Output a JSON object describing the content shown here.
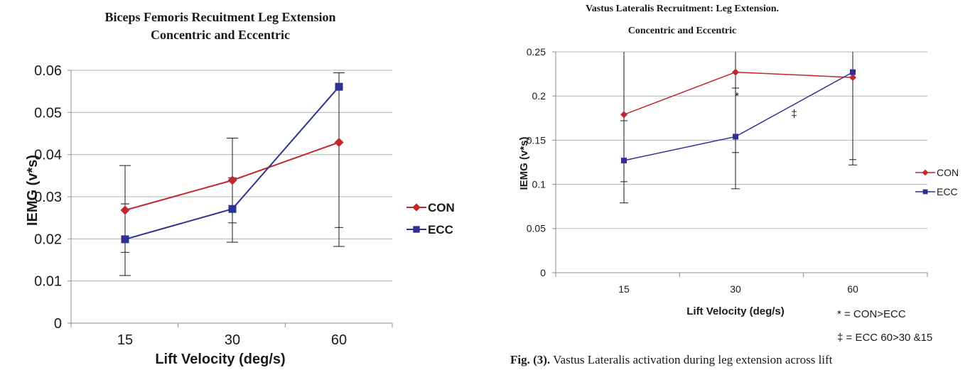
{
  "chart_data": [
    {
      "type": "line",
      "title_lines": [
        "Biceps Femoris Recuitment Leg Extension",
        "Concentric and Eccentric"
      ],
      "xlabel": "Lift Velocity (deg/s)",
      "ylabel": "IEMG (v*s)",
      "categories": [
        "15",
        "30",
        "60"
      ],
      "ylim": [
        0,
        0.06
      ],
      "yticks": [
        0,
        0.01,
        0.02,
        0.03,
        0.04,
        0.05,
        0.06
      ],
      "ytick_labels": [
        "0",
        "0.01",
        "0.02",
        "0.03",
        "0.04",
        "0.05",
        "0.06"
      ],
      "grid": true,
      "legend_position": "right",
      "series": [
        {
          "name": "CON",
          "color": "#c0282e",
          "marker": "diamond",
          "values": [
            0.0268,
            0.0339,
            0.0429
          ],
          "err_low": [
            0.0268,
            0.0339,
            0.0429
          ],
          "err_high": [
            0.0268,
            0.0339,
            0.0429
          ]
        },
        {
          "name": "ECC",
          "color": "#2e3192",
          "marker": "square",
          "values": [
            0.0199,
            0.0271,
            0.0561
          ],
          "err_low": [
            0.0113,
            0.0192,
            0.0182
          ],
          "err_high": [
            0.0374,
            0.0439,
            0.0594
          ]
        }
      ],
      "error_bars": [
        {
          "x": "15",
          "low": 0.0113,
          "high": 0.0374,
          "extra_caps": [
            0.0168,
            0.0283
          ]
        },
        {
          "x": "30",
          "low": 0.0192,
          "high": 0.0439,
          "extra_caps": [
            0.0238,
            0.0345
          ]
        },
        {
          "x": "60",
          "low": 0.0182,
          "high": 0.0594,
          "extra_caps": [
            0.0227
          ]
        }
      ],
      "annotations": []
    },
    {
      "type": "line",
      "title_lines": [
        "Vastus Lateralis Recruitment: Leg Extension.",
        "Concentric and Eccentric"
      ],
      "xlabel": "Lift Velocity (deg/s)",
      "ylabel": "IEMG (v*s)",
      "categories": [
        "15",
        "30",
        "60"
      ],
      "ylim": [
        0,
        0.25
      ],
      "yticks": [
        0,
        0.05,
        0.1,
        0.15,
        0.2,
        0.25
      ],
      "ytick_labels": [
        "0",
        "0.05",
        "0.1",
        "0.15",
        "0.2",
        "0.25"
      ],
      "grid": true,
      "legend_position": "right",
      "series": [
        {
          "name": "CON",
          "color": "#c0282e",
          "marker": "diamond",
          "values": [
            0.179,
            0.227,
            0.221
          ]
        },
        {
          "name": "ECC",
          "color": "#2e3192",
          "marker": "square",
          "values": [
            0.127,
            0.154,
            0.227
          ]
        }
      ],
      "error_bars": [
        {
          "x": "15",
          "low": 0.079,
          "high": 0.25,
          "extra_caps": [
            0.103,
            0.172
          ]
        },
        {
          "x": "30",
          "low": 0.095,
          "high": 0.25,
          "extra_caps": [
            0.136,
            0.209
          ]
        },
        {
          "x": "60",
          "low": 0.122,
          "high": 0.25,
          "extra_caps": [
            0.128
          ]
        }
      ],
      "annotations": [
        {
          "text": "*",
          "x": "30",
          "y": 0.2
        },
        {
          "text": "‡",
          "between": [
            "30",
            "60"
          ],
          "y": 0.18
        }
      ],
      "notes": [
        "* = CON>ECC",
        "‡ = ECC 60>30 &15"
      ]
    }
  ],
  "caption": {
    "label": "Fig. (3).",
    "text": "Vastus Lateralis activation during leg extension across lift"
  }
}
